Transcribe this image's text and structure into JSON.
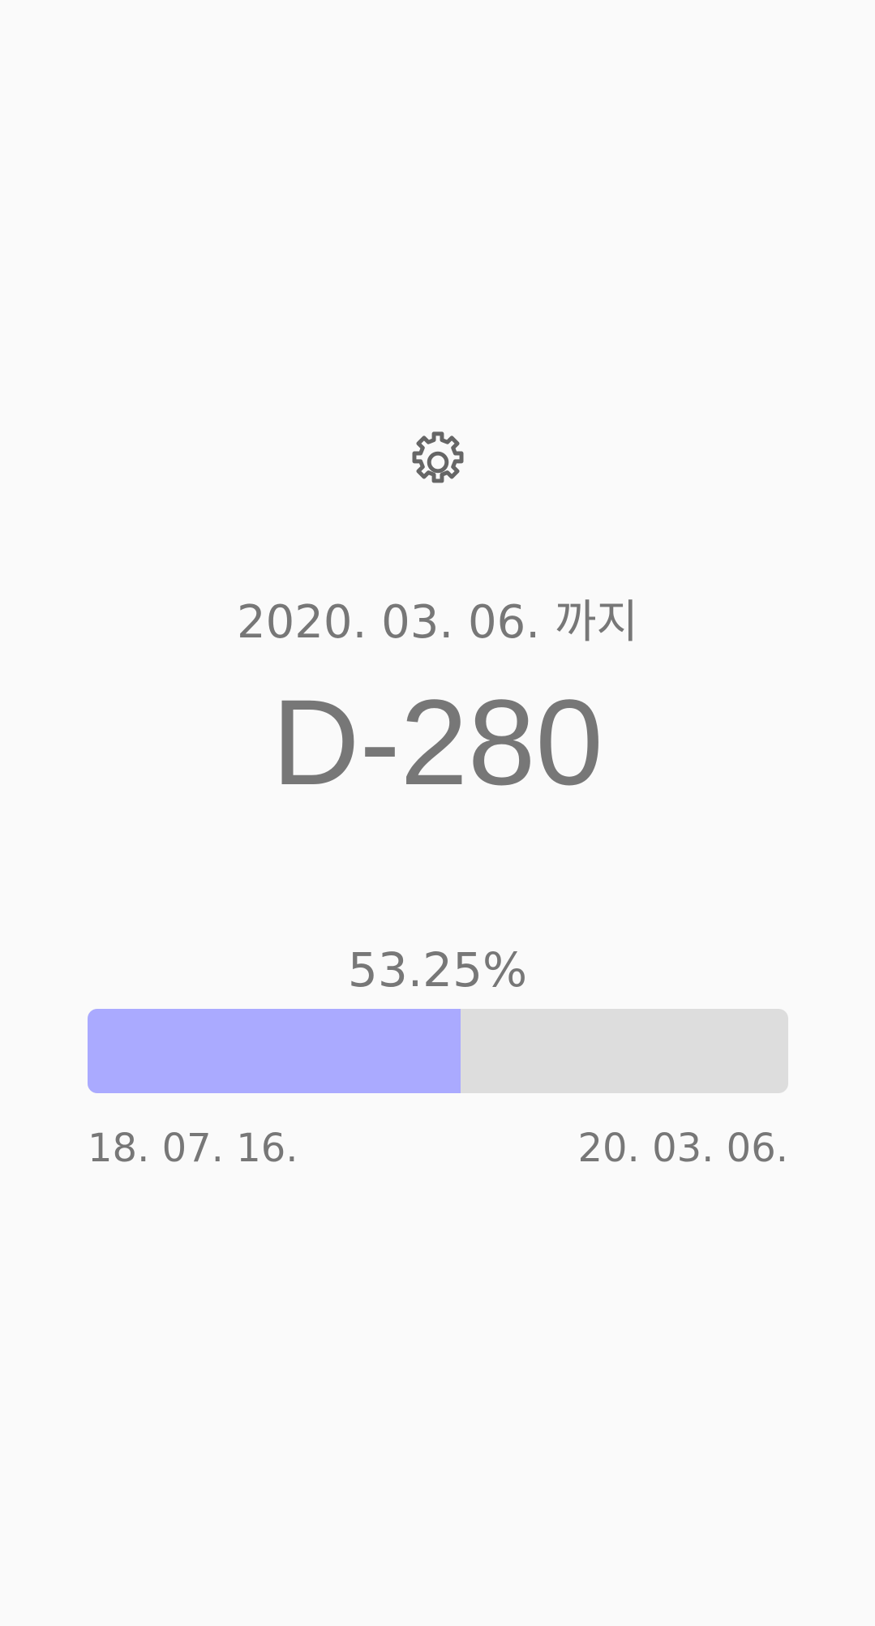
{
  "header": {
    "settings_icon": "gear-icon"
  },
  "countdown": {
    "until_label": "2020. 03. 06. 까지",
    "dday": "D-280"
  },
  "progress": {
    "percent_label": "53.25%",
    "fraction": 0.5325,
    "fill_color": "#aaaaff",
    "track_color": "#dddddd",
    "start_date": "18. 07. 16.",
    "end_date": "20. 03. 06."
  },
  "colors": {
    "background": "#fafafa",
    "text": "#777777"
  }
}
